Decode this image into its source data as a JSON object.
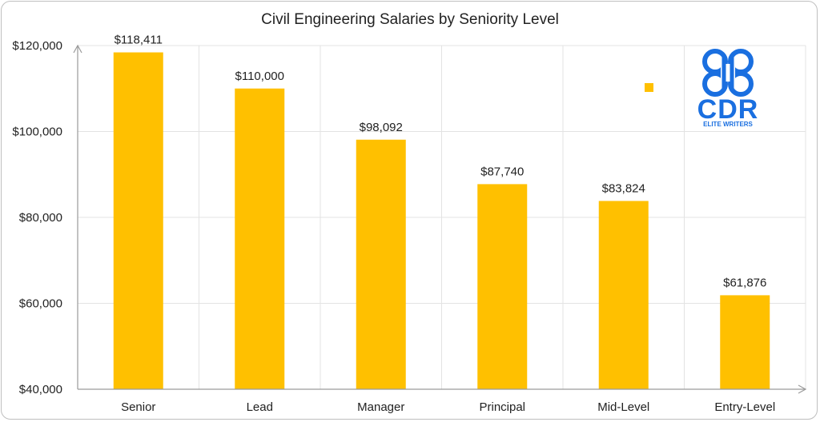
{
  "chart_data": {
    "type": "bar",
    "title": "Civil Engineering Salaries by Seniority Level",
    "xlabel": "",
    "ylabel": "",
    "categories": [
      "Senior",
      "Lead",
      "Manager",
      "Principal",
      "Mid-Level",
      "Entry-Level"
    ],
    "values": [
      118411,
      110000,
      98092,
      87740,
      83824,
      61876
    ],
    "data_labels": [
      "$118,411",
      "$110,000",
      "$98,092",
      "$87,740",
      "$83,824",
      "$61,876"
    ],
    "ylim": [
      40000,
      120000
    ],
    "yticks": [
      40000,
      60000,
      80000,
      100000,
      120000
    ],
    "ytick_labels": [
      "$40,000",
      "$60,000",
      "$80,000",
      "$100,000",
      "$120,000"
    ],
    "grid": true,
    "bar_color": "#FFC000",
    "grid_color": "#e3e3e3",
    "axis_color": "#9a9a9a",
    "legend": "none"
  },
  "logo": {
    "icon": "cdr-logo-icon",
    "text": "CDR",
    "subtitle": "ELITE WRITERS",
    "color": "#1a6fe0"
  }
}
